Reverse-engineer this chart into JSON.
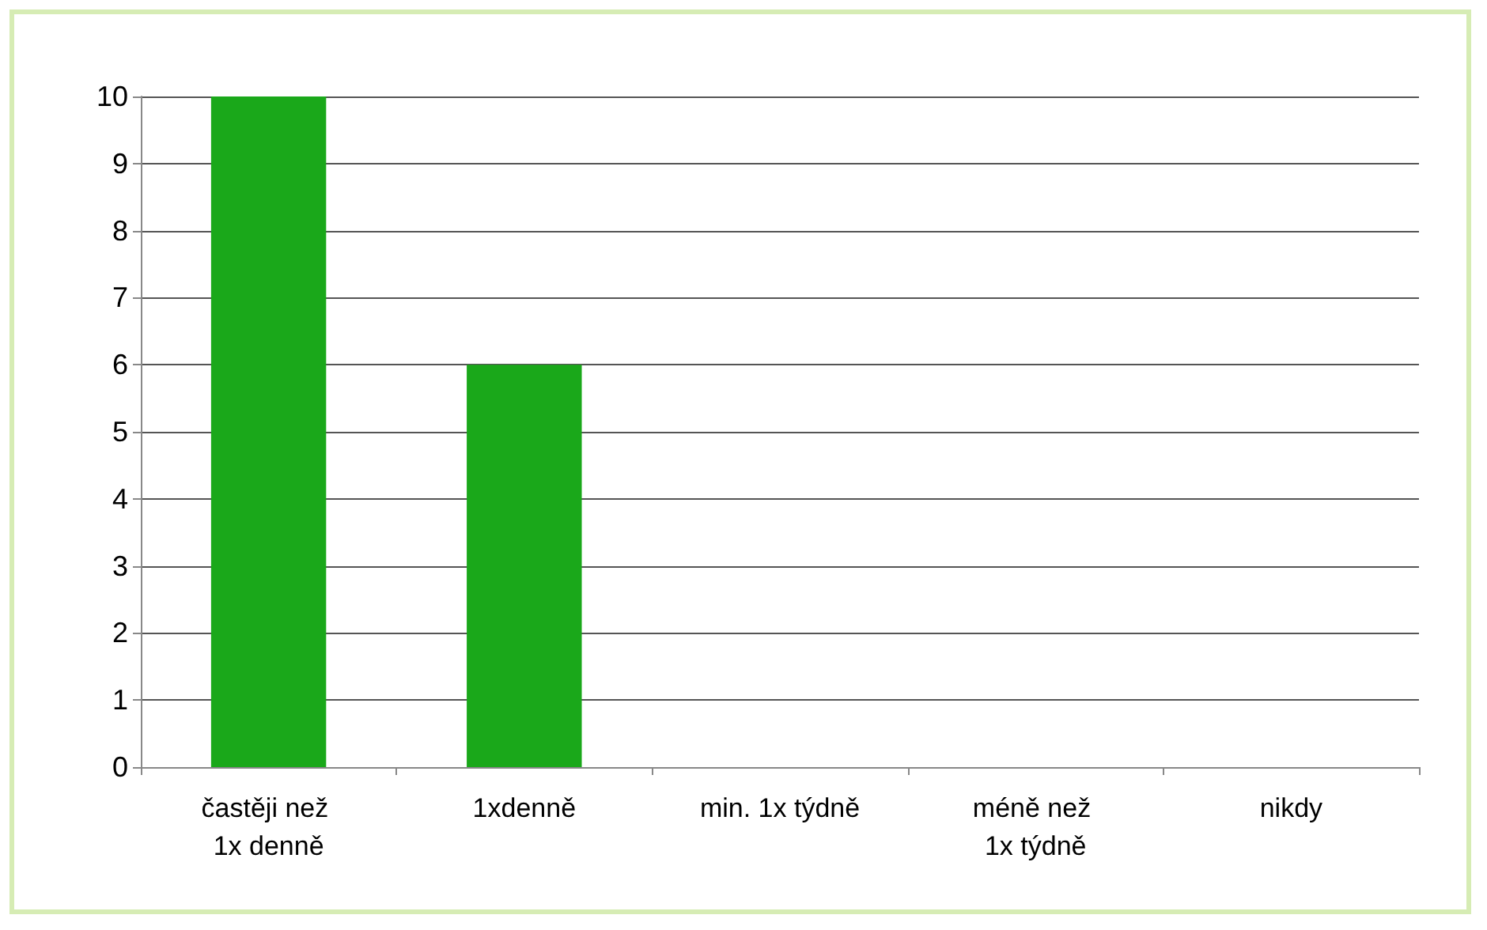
{
  "chart_data": {
    "type": "bar",
    "categories": [
      "častěji než 1x denně",
      "1xdenně",
      "min. 1x týdně",
      "méně než 1x týdně",
      "nikdy"
    ],
    "values": [
      10,
      6,
      0,
      0,
      0
    ],
    "color": "#1aa81a",
    "ylim": [
      0,
      10
    ],
    "yticks": [
      0,
      1,
      2,
      3,
      4,
      5,
      6,
      7,
      8,
      9,
      10
    ],
    "grid": "y"
  }
}
